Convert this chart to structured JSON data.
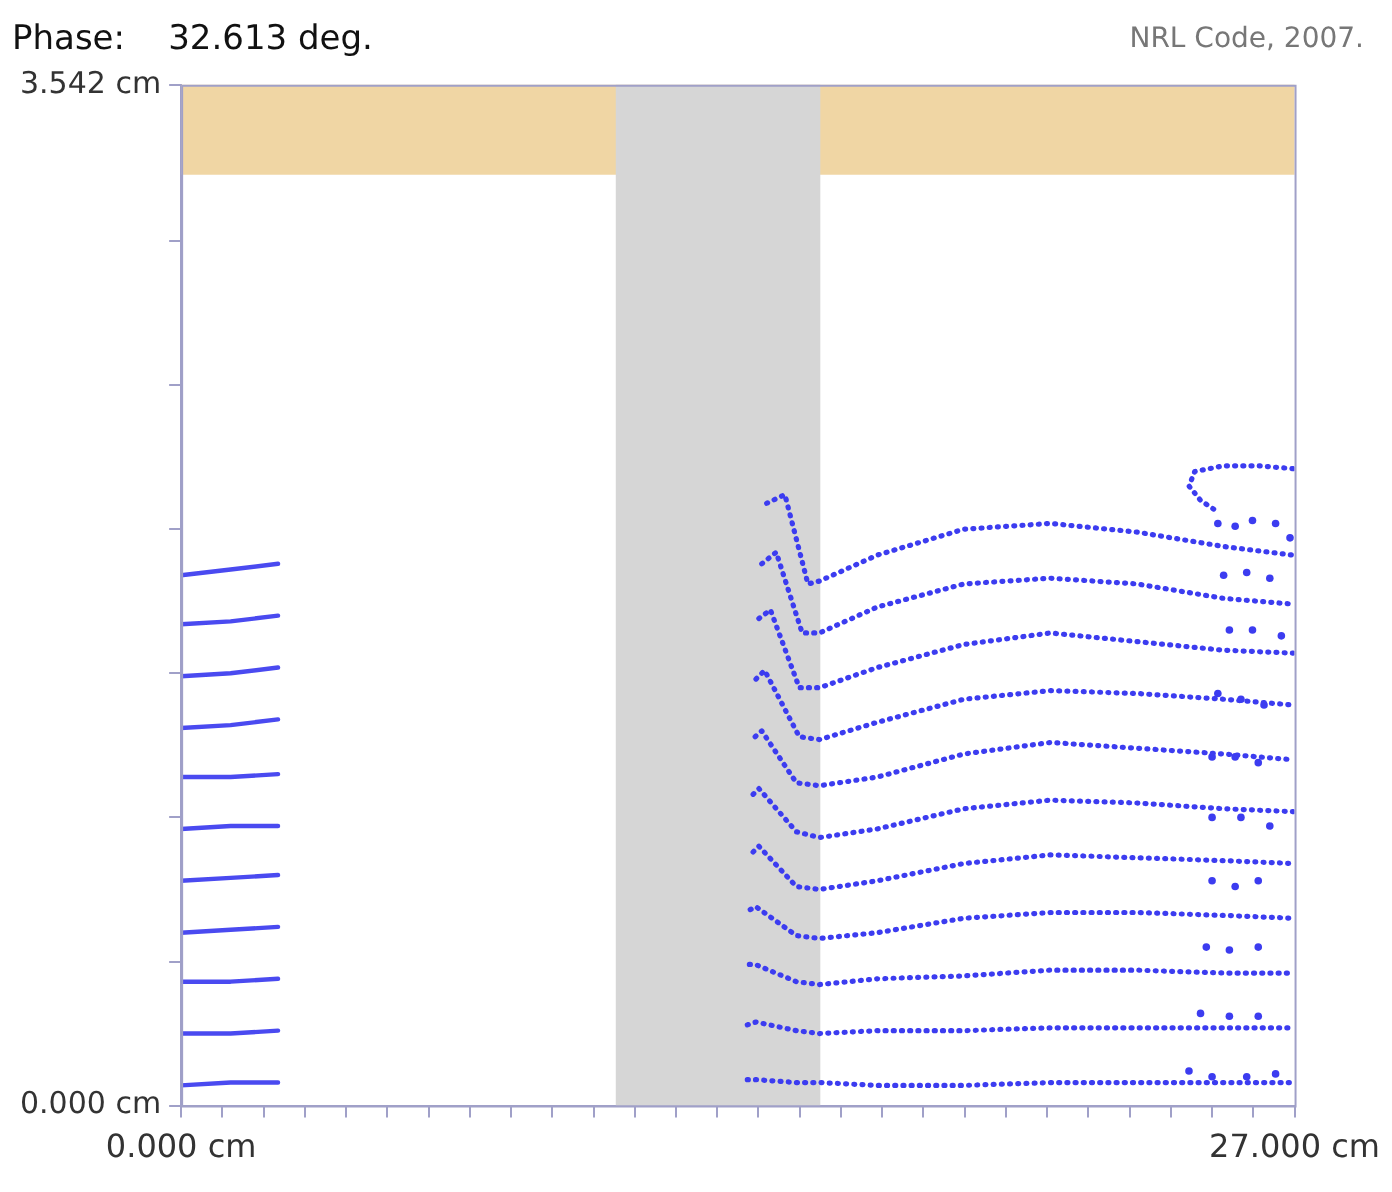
{
  "chart_data": {
    "type": "line",
    "title": "Phase:    32.613 deg.",
    "annotations": [
      "NRL Code, 2007."
    ],
    "xlim": [
      0,
      27
    ],
    "ylim": [
      0,
      3.542
    ],
    "grid": false,
    "legend": false,
    "xticks": [
      {
        "value": 0,
        "label": "0.000 cm"
      },
      {
        "value": 1,
        "label": null
      },
      {
        "value": 2,
        "label": null
      },
      {
        "value": 3,
        "label": null
      },
      {
        "value": 4,
        "label": null
      },
      {
        "value": 5,
        "label": null
      },
      {
        "value": 6,
        "label": null
      },
      {
        "value": 7,
        "label": null
      },
      {
        "value": 8,
        "label": null
      },
      {
        "value": 9,
        "label": null
      },
      {
        "value": 10,
        "label": null
      },
      {
        "value": 11,
        "label": null
      },
      {
        "value": 12,
        "label": null
      },
      {
        "value": 13,
        "label": null
      },
      {
        "value": 14,
        "label": null
      },
      {
        "value": 15,
        "label": null
      },
      {
        "value": 16,
        "label": null
      },
      {
        "value": 17,
        "label": null
      },
      {
        "value": 18,
        "label": null
      },
      {
        "value": 19,
        "label": null
      },
      {
        "value": 20,
        "label": null
      },
      {
        "value": 21,
        "label": null
      },
      {
        "value": 22,
        "label": null
      },
      {
        "value": 23,
        "label": null
      },
      {
        "value": 24,
        "label": null
      },
      {
        "value": 25,
        "label": null
      },
      {
        "value": 26,
        "label": null
      },
      {
        "value": 27,
        "label": "27.000 cm"
      }
    ],
    "yticks": [
      {
        "value": 0,
        "label": "0.000 cm"
      },
      {
        "value": 0.5,
        "label": null
      },
      {
        "value": 1,
        "label": null
      },
      {
        "value": 1.5,
        "label": null
      },
      {
        "value": 2,
        "label": null
      },
      {
        "value": 2.5,
        "label": null
      },
      {
        "value": 3,
        "label": null
      },
      {
        "value": 3.542,
        "label": "3.542 cm"
      }
    ],
    "bands": [
      {
        "axis": "y",
        "from": 3.23,
        "to": 3.542,
        "color": "#f0d6a4"
      },
      {
        "axis": "x",
        "from": 10.54,
        "to": 15.5,
        "color": "#d6d6d6"
      }
    ],
    "series": [
      {
        "line_style": "solid",
        "color": "#4a4af0",
        "x": [
          0,
          1.2,
          2.35
        ],
        "values": [
          1.84,
          1.86,
          1.88
        ]
      },
      {
        "line_style": "solid",
        "color": "#4a4af0",
        "x": [
          0,
          1.2,
          2.35
        ],
        "values": [
          1.67,
          1.68,
          1.7
        ]
      },
      {
        "line_style": "solid",
        "color": "#4a4af0",
        "x": [
          0,
          1.2,
          2.35
        ],
        "values": [
          1.49,
          1.5,
          1.52
        ]
      },
      {
        "line_style": "solid",
        "color": "#4a4af0",
        "x": [
          0,
          1.2,
          2.35
        ],
        "values": [
          1.31,
          1.32,
          1.34
        ]
      },
      {
        "line_style": "solid",
        "color": "#4a4af0",
        "x": [
          0,
          1.2,
          2.35
        ],
        "values": [
          1.14,
          1.14,
          1.15
        ]
      },
      {
        "line_style": "solid",
        "color": "#4a4af0",
        "x": [
          0,
          1.2,
          2.35
        ],
        "values": [
          0.96,
          0.97,
          0.97
        ]
      },
      {
        "line_style": "solid",
        "color": "#4a4af0",
        "x": [
          0,
          1.2,
          2.35
        ],
        "values": [
          0.78,
          0.79,
          0.8
        ]
      },
      {
        "line_style": "solid",
        "color": "#4a4af0",
        "x": [
          0,
          1.2,
          2.35
        ],
        "values": [
          0.6,
          0.61,
          0.62
        ]
      },
      {
        "line_style": "solid",
        "color": "#4a4af0",
        "x": [
          0,
          1.2,
          2.35
        ],
        "values": [
          0.43,
          0.43,
          0.44
        ]
      },
      {
        "line_style": "solid",
        "color": "#4a4af0",
        "x": [
          0,
          1.2,
          2.35
        ],
        "values": [
          0.25,
          0.25,
          0.26
        ]
      },
      {
        "line_style": "solid",
        "color": "#4a4af0",
        "x": [
          0,
          1.2,
          2.35
        ],
        "values": [
          0.07,
          0.08,
          0.08
        ]
      },
      {
        "line_style": "dotted",
        "color": "#3c3cf0",
        "x": [
          14.2,
          14.64,
          15.2,
          15.48,
          16.88,
          18.98,
          21.08,
          23.18,
          25.28,
          26.96
        ],
        "values": [
          2.09,
          2.12,
          1.81,
          1.82,
          1.91,
          2.0,
          2.02,
          1.99,
          1.94,
          1.91
        ]
      },
      {
        "line_style": "dotted",
        "color": "#3c3cf0",
        "x": [
          14.08,
          14.43,
          15.06,
          15.48,
          16.88,
          18.98,
          21.08,
          23.18,
          25.28,
          26.96
        ],
        "values": [
          1.88,
          1.92,
          1.64,
          1.64,
          1.73,
          1.81,
          1.83,
          1.81,
          1.76,
          1.74
        ]
      },
      {
        "line_style": "dotted",
        "color": "#3c3cf0",
        "x": [
          14.01,
          14.29,
          14.99,
          15.48,
          16.88,
          18.98,
          21.08,
          23.18,
          25.28,
          26.96
        ],
        "values": [
          1.69,
          1.72,
          1.45,
          1.45,
          1.52,
          1.6,
          1.64,
          1.61,
          1.58,
          1.57
        ]
      },
      {
        "line_style": "dotted",
        "color": "#3c3cf0",
        "x": [
          13.94,
          14.15,
          14.99,
          15.48,
          16.88,
          18.98,
          21.08,
          23.18,
          25.28,
          26.96
        ],
        "values": [
          1.48,
          1.51,
          1.28,
          1.27,
          1.33,
          1.41,
          1.44,
          1.43,
          1.41,
          1.39
        ]
      },
      {
        "line_style": "dotted",
        "color": "#3c3cf0",
        "x": [
          13.92,
          14.08,
          14.92,
          15.48,
          16.88,
          18.98,
          21.08,
          23.18,
          25.28,
          26.96
        ],
        "values": [
          1.28,
          1.3,
          1.12,
          1.11,
          1.14,
          1.22,
          1.26,
          1.24,
          1.22,
          1.2
        ]
      },
      {
        "line_style": "dotted",
        "color": "#3c3cf0",
        "x": [
          13.87,
          14.01,
          14.92,
          15.48,
          16.88,
          18.98,
          21.08,
          23.18,
          25.28,
          26.96
        ],
        "values": [
          1.08,
          1.1,
          0.95,
          0.93,
          0.96,
          1.03,
          1.06,
          1.05,
          1.03,
          1.02
        ]
      },
      {
        "line_style": "dotted",
        "color": "#3c3cf0",
        "x": [
          13.87,
          14.01,
          14.92,
          15.48,
          16.88,
          18.98,
          21.08,
          23.18,
          25.28,
          26.96
        ],
        "values": [
          0.88,
          0.9,
          0.76,
          0.75,
          0.78,
          0.84,
          0.87,
          0.86,
          0.85,
          0.84
        ]
      },
      {
        "line_style": "dotted",
        "color": "#3c3cf0",
        "x": [
          13.8,
          13.94,
          14.92,
          15.48,
          16.88,
          18.98,
          21.08,
          23.18,
          25.28,
          26.96
        ],
        "values": [
          0.68,
          0.69,
          0.59,
          0.58,
          0.6,
          0.65,
          0.67,
          0.67,
          0.66,
          0.65
        ]
      },
      {
        "line_style": "dotted",
        "color": "#3c3cf0",
        "x": [
          13.78,
          13.92,
          14.92,
          15.48,
          16.88,
          18.98,
          21.08,
          23.18,
          25.28,
          26.96
        ],
        "values": [
          0.49,
          0.49,
          0.43,
          0.42,
          0.44,
          0.45,
          0.47,
          0.47,
          0.46,
          0.46
        ]
      },
      {
        "line_style": "dotted",
        "color": "#3c3cf0",
        "x": [
          13.73,
          13.94,
          14.92,
          15.48,
          16.88,
          18.98,
          21.08,
          23.18,
          25.28,
          26.96
        ],
        "values": [
          0.28,
          0.29,
          0.26,
          0.25,
          0.26,
          0.26,
          0.27,
          0.27,
          0.27,
          0.27
        ]
      },
      {
        "line_style": "dotted",
        "color": "#3c3cf0",
        "x": [
          13.73,
          13.94,
          14.92,
          15.48,
          16.88,
          18.98,
          21.08,
          23.18,
          25.28,
          26.96
        ],
        "values": [
          0.09,
          0.09,
          0.08,
          0.08,
          0.07,
          0.07,
          0.08,
          0.08,
          0.08,
          0.08
        ]
      },
      {
        "line_style": "dotted",
        "color": "#3c3cf0",
        "x": [
          26.96,
          26.12,
          25.28,
          24.58,
          24.44,
          24.72,
          25.14
        ],
        "values": [
          2.21,
          2.22,
          2.22,
          2.2,
          2.15,
          2.1,
          2.06
        ]
      },
      {
        "type": "scatter",
        "marker": "circle",
        "color": "#3c3cf0",
        "x": [
          25.14,
          25.56,
          25.98,
          26.54,
          26.89,
          25.28,
          25.84,
          26.4,
          25.42,
          25.98,
          26.68,
          25.14,
          25.7,
          26.26,
          25.0,
          25.56,
          26.12,
          25.0,
          25.7,
          26.4,
          25.0,
          25.56,
          26.12,
          24.86,
          25.42,
          26.12,
          24.72,
          25.42,
          26.12,
          24.44,
          25.0,
          25.84,
          26.54
        ],
        "values": [
          2.02,
          2.01,
          2.03,
          2.02,
          1.97,
          1.84,
          1.85,
          1.83,
          1.65,
          1.65,
          1.63,
          1.43,
          1.41,
          1.39,
          1.21,
          1.21,
          1.19,
          1.0,
          1.0,
          0.97,
          0.78,
          0.76,
          0.78,
          0.55,
          0.54,
          0.55,
          0.32,
          0.31,
          0.31,
          0.12,
          0.1,
          0.1,
          0.11
        ]
      }
    ]
  }
}
